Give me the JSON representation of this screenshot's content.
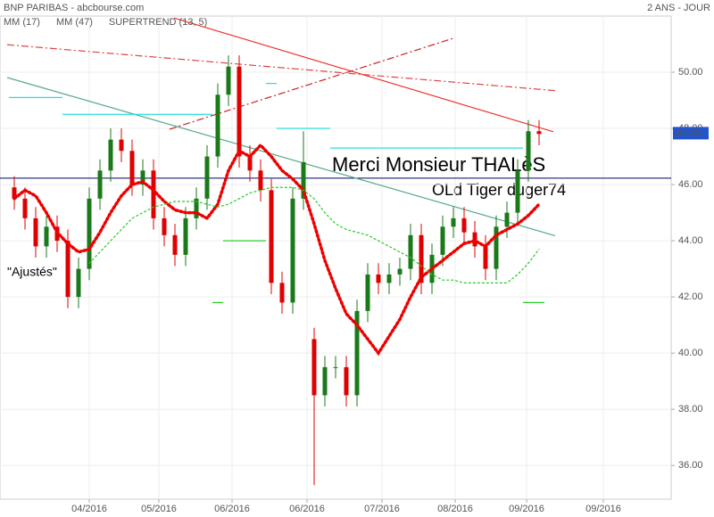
{
  "chart_data": {
    "type": "candlestick",
    "title": "BNP PARIBAS - abcbourse.com",
    "subtitle": "2 ANS - JOUR",
    "annotations": [
      "Merci Monsieur THALèS",
      "OLd Tiger duger74",
      "\"Ajustés\""
    ],
    "x": [
      4,
      7,
      10,
      13,
      16,
      19,
      22,
      25,
      28,
      31,
      34,
      37,
      40,
      43,
      46,
      49,
      52,
      55,
      58,
      61,
      64,
      67,
      70,
      73,
      76,
      79,
      82,
      85,
      88,
      91,
      94,
      97,
      100,
      103,
      106,
      109,
      112,
      115,
      118,
      121,
      124,
      127,
      130,
      133,
      136,
      139,
      142,
      145,
      148,
      151
    ],
    "open": [
      45.9,
      45.5,
      44.8,
      43.8,
      44.5,
      44.0,
      42.0,
      43.0,
      45.5,
      46.5,
      47.6,
      47.2,
      46.0,
      46.5,
      44.8,
      44.2,
      43.5,
      44.8,
      45.5,
      47.0,
      49.2,
      50.2,
      47.0,
      46.5,
      45.8,
      42.5,
      41.8,
      45.5,
      40.5,
      38.5,
      39.5,
      39.5,
      38.5,
      41.5,
      42.8,
      42.5,
      42.8,
      43.0,
      44.2,
      42.5,
      43.5,
      44.5,
      44.8,
      44.3,
      43.8,
      43.0,
      44.5,
      45.0,
      46.5,
      47.9
    ],
    "high": [
      46.3,
      45.9,
      45.2,
      44.9,
      44.9,
      44.4,
      43.4,
      45.9,
      46.9,
      48.0,
      48.0,
      47.6,
      46.9,
      46.9,
      45.2,
      44.6,
      45.2,
      45.9,
      47.4,
      49.6,
      50.6,
      50.6,
      47.4,
      46.9,
      46.2,
      42.9,
      45.9,
      47.9,
      40.9,
      39.9,
      39.9,
      39.9,
      41.9,
      43.2,
      43.2,
      43.2,
      43.4,
      44.6,
      44.6,
      43.9,
      44.9,
      45.2,
      45.2,
      44.7,
      44.2,
      44.9,
      45.4,
      46.9,
      48.3,
      48.3
    ],
    "low": [
      45.1,
      44.4,
      43.4,
      43.4,
      43.6,
      41.6,
      41.6,
      42.6,
      45.1,
      46.1,
      46.8,
      45.6,
      45.6,
      44.4,
      43.8,
      43.1,
      43.1,
      44.4,
      45.1,
      46.6,
      48.8,
      46.6,
      46.1,
      45.4,
      42.1,
      41.4,
      41.4,
      45.1,
      35.3,
      38.1,
      39.1,
      38.1,
      38.1,
      41.1,
      42.1,
      42.1,
      42.4,
      42.6,
      42.1,
      42.1,
      43.1,
      44.1,
      43.9,
      43.4,
      42.6,
      42.6,
      44.1,
      44.6,
      46.1,
      47.4
    ],
    "close": [
      45.5,
      44.8,
      43.8,
      44.5,
      44.0,
      42.0,
      43.0,
      45.5,
      46.5,
      47.6,
      47.2,
      46.0,
      46.5,
      44.8,
      44.2,
      43.5,
      44.8,
      45.5,
      47.0,
      49.2,
      50.2,
      47.0,
      46.5,
      45.8,
      42.5,
      41.8,
      45.5,
      46.8,
      38.5,
      39.5,
      39.5,
      38.5,
      41.5,
      42.8,
      42.5,
      42.8,
      43.0,
      44.2,
      42.5,
      43.5,
      44.5,
      44.8,
      44.3,
      43.8,
      43.0,
      44.5,
      45.0,
      46.5,
      47.9,
      47.8
    ],
    "up_color": "#1a7a1a",
    "down_color": "#e00000",
    "series": [
      {
        "name": "MM (17)",
        "color": "#ee0000",
        "style": "dotted",
        "width": 3.5,
        "values": [
          45.5,
          45.8,
          45.6,
          45.0,
          44.3,
          43.9,
          43.6,
          43.7,
          44.3,
          45.0,
          45.6,
          46.0,
          46.1,
          45.8,
          45.4,
          45.1,
          45.0,
          45.0,
          44.8,
          45.3,
          46.5,
          47.2,
          47.0,
          47.4,
          47.0,
          46.5,
          46.2,
          45.8,
          44.6,
          43.3,
          42.3,
          41.4,
          41.0,
          40.5,
          40.0,
          40.6,
          41.2,
          42.0,
          42.7,
          43.0,
          43.3,
          43.6,
          43.9,
          44.0,
          43.8,
          44.2,
          44.4,
          44.6,
          44.9,
          45.3
        ]
      },
      {
        "name": "MM (47)",
        "color": "#22cc22",
        "style": "dotted",
        "width": 1.2,
        "values": [
          null,
          null,
          null,
          null,
          null,
          null,
          null,
          43.2,
          43.6,
          44.0,
          44.4,
          44.8,
          45.0,
          45.2,
          45.3,
          45.4,
          45.4,
          45.4,
          45.3,
          45.2,
          45.3,
          45.5,
          45.7,
          45.8,
          45.9,
          45.9,
          45.9,
          45.8,
          45.5,
          45.0,
          44.6,
          44.4,
          44.3,
          44.2,
          44.0,
          43.8,
          43.6,
          43.4,
          43.1,
          42.8,
          42.6,
          42.6,
          42.5,
          42.5,
          42.5,
          42.5,
          42.5,
          42.8,
          43.2,
          43.7
        ]
      },
      {
        "name": "SUPERTREND (13, 5)",
        "color": "#22dddd",
        "color_below": "#22cc22",
        "style": "step",
        "width": 1.2,
        "values": [
          49.1,
          49.1,
          49.1,
          49.1,
          49.1,
          48.5,
          48.5,
          48.5,
          48.5,
          48.5,
          48.5,
          48.5,
          48.5,
          48.5,
          48.5,
          48.5,
          48.5,
          48.5,
          48.5,
          41.8,
          44.0,
          44.0,
          44.0,
          44.0,
          49.6,
          48.0,
          48.0,
          48.0,
          48.0,
          48.0,
          47.3,
          47.3,
          47.3,
          47.3,
          47.3,
          47.3,
          47.3,
          47.3,
          47.3,
          47.3,
          47.3,
          47.3,
          47.3,
          47.3,
          47.3,
          47.3,
          47.3,
          47.3,
          41.8,
          41.8
        ]
      }
    ],
    "trendlines": [
      {
        "color": "#ee3333",
        "style": "solid",
        "x": [
          48.75,
          155
        ],
        "y": [
          51.93,
          47.88
        ]
      },
      {
        "color": "#dd4444",
        "style": "dashdot",
        "x": [
          2,
          156
        ],
        "y": [
          50.98,
          49.34
        ]
      },
      {
        "color": "#cc2222",
        "style": "dashdot",
        "x": [
          47.5,
          127.5
        ],
        "y": [
          47.97,
          51.23
        ]
      },
      {
        "color": "#55aa88",
        "style": "solid",
        "x": [
          2,
          155.5
        ],
        "y": [
          49.81,
          44.18
        ]
      }
    ],
    "hline": 46.23,
    "hline_color": "#000066",
    "last_price": 47.83,
    "last_price_color": "#2255cc",
    "xlim": [
      0,
      188
    ],
    "ylim": [
      34.8,
      52.0
    ],
    "xticks": [
      {
        "value": 25,
        "label": "04/2016"
      },
      {
        "value": 44.5,
        "label": "05/2016"
      },
      {
        "value": 65,
        "label": "06/2016"
      },
      {
        "value": 86,
        "label": "06/2016"
      },
      {
        "value": 107,
        "label": "07/2016"
      },
      {
        "value": 127.5,
        "label": "08/2016"
      },
      {
        "value": 147.5,
        "label": "09/2016"
      },
      {
        "value": 169,
        "label": "09/2016"
      }
    ],
    "yticks": [
      {
        "value": 36,
        "label": "36.00"
      },
      {
        "value": 38,
        "label": "38.00"
      },
      {
        "value": 40,
        "label": "40.00"
      },
      {
        "value": 42,
        "label": "42.00"
      },
      {
        "value": 44,
        "label": "44.00"
      },
      {
        "value": 46,
        "label": "46.00"
      },
      {
        "value": 48,
        "label": "48.00"
      },
      {
        "value": 50,
        "label": "50.00"
      }
    ],
    "grid": true
  }
}
